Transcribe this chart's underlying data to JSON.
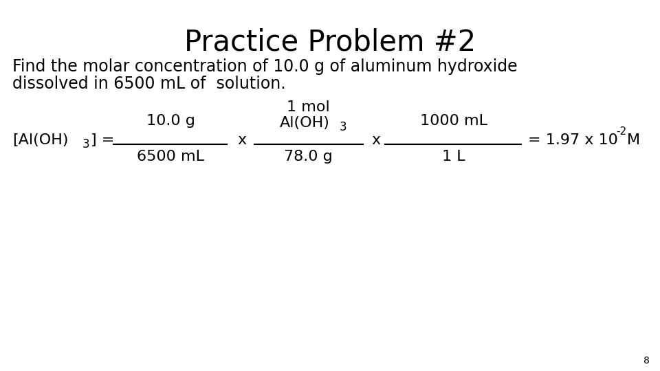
{
  "title": "Practice Problem #2",
  "title_fontsize": 30,
  "bg_color": "#ffffff",
  "text_color": "#000000",
  "problem_line1": "Find the molar concentration of 10.0 g of aluminum hydroxide",
  "problem_line2": "dissolved in 6500 mL of  solution.",
  "problem_fontsize": 17,
  "label_fontsize": 16,
  "page_number": "8",
  "fraction1_num": "10.0 g",
  "fraction1_den": "6500 mL",
  "fraction2_num_top": "1 mol",
  "fraction2_num_bot": "Al(OH)",
  "fraction2_num_sub": "3",
  "fraction2_den": "78.0 g",
  "fraction3_num": "1000 mL",
  "fraction3_den": "1 L",
  "result": "= 1.97 x 10",
  "result_sup": "-2",
  "result_end": "M",
  "bracket_label": "[Al(OH)",
  "bracket_sub": "3",
  "bracket_end": "] ="
}
